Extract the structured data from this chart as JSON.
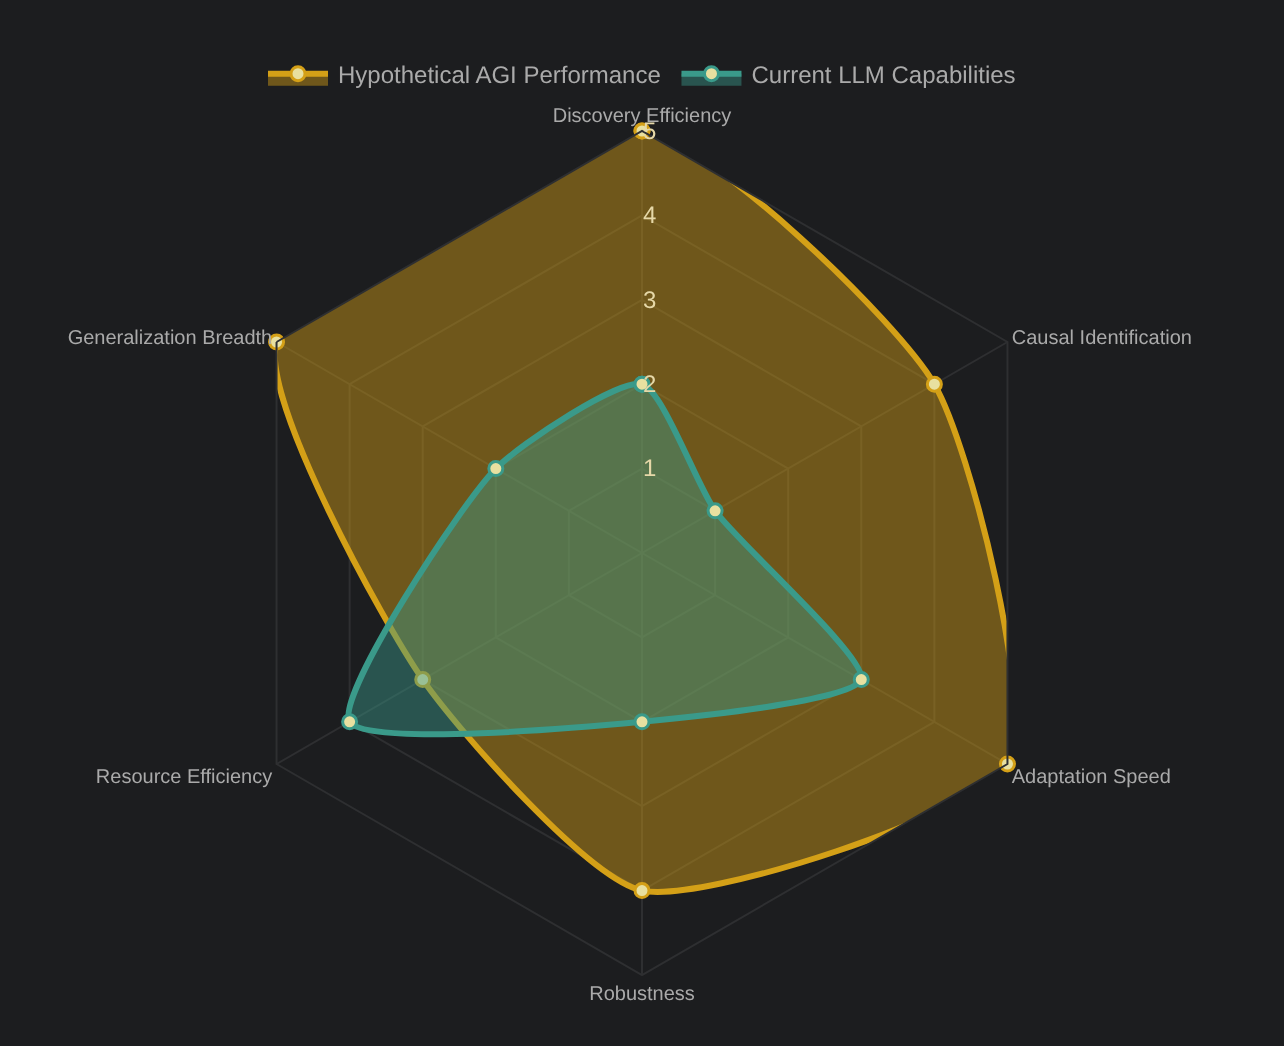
{
  "chart_data": {
    "type": "radar",
    "categories": [
      "Discovery Efficiency",
      "Causal Identification",
      "Adaptation Speed",
      "Robustness",
      "Resource Efficiency",
      "Generalization Breadth"
    ],
    "series": [
      {
        "name": "Hypothetical AGI Performance",
        "color": "#d4a017",
        "values": [
          5,
          4,
          5,
          4,
          3,
          5
        ]
      },
      {
        "name": "Current LLM Capabilities",
        "color": "#3a9a8a",
        "values": [
          2,
          1,
          3,
          2,
          4,
          2
        ]
      }
    ],
    "ylim": [
      0,
      5
    ],
    "yticks": [
      1,
      2,
      3,
      4,
      5
    ],
    "legend": "top",
    "marker": "circle",
    "grid": true
  }
}
